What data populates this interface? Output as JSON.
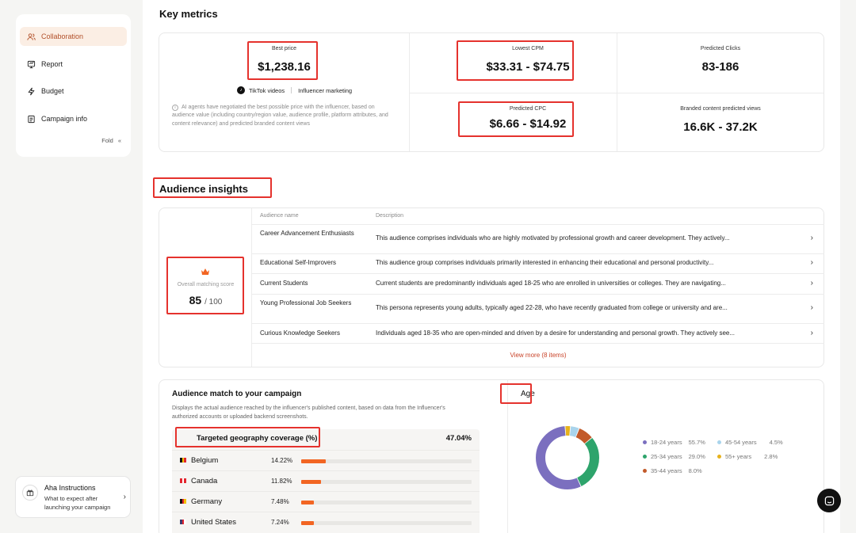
{
  "sidebar": {
    "items": [
      {
        "label": "Collaboration",
        "icon": "users-icon",
        "active": true
      },
      {
        "label": "Report",
        "icon": "report-icon",
        "active": false
      },
      {
        "label": "Budget",
        "icon": "lightning-icon",
        "active": false
      },
      {
        "label": "Campaign info",
        "icon": "document-icon",
        "active": false
      }
    ],
    "fold_label": "Fold",
    "fold_icon": "«"
  },
  "aha": {
    "title": "Aha Instructions",
    "subtitle": "What to expect after launching your campaign"
  },
  "key_metrics": {
    "title": "Key metrics",
    "best_price": {
      "label": "Best price",
      "value": "$1,238.16"
    },
    "platform": "TikTok videos",
    "marketing_type": "Influencer marketing",
    "ai_note": "AI agents have negotiated the best possible price with the influencer, based on audience value (including country/region value, audience profile, platform attributes, and content relevance) and predicted branded content views",
    "lowest_cpm": {
      "label": "Lowest CPM",
      "value": "$33.31 - $74.75"
    },
    "predicted_clicks": {
      "label": "Predicted Clicks",
      "value": "83-186"
    },
    "predicted_cpc": {
      "label": "Predicted CPC",
      "value": "$6.66 - $14.92"
    },
    "branded_views": {
      "label": "Branded content predicted views",
      "value": "16.6K - 37.2K"
    }
  },
  "audience_insights": {
    "title": "Audience insights",
    "score_label": "Overall matching score",
    "score": "85",
    "score_max": "/ 100",
    "columns": {
      "name": "Audience name",
      "description": "Description"
    },
    "rows": [
      {
        "name": "Career Advancement Enthusiasts",
        "description": "This audience comprises individuals who are highly motivated by professional growth and career development. They actively..."
      },
      {
        "name": "Educational Self-Improvers",
        "description": "This audience group comprises individuals primarily interested in enhancing their educational and personal productivity..."
      },
      {
        "name": "Current Students",
        "description": "Current students are predominantly individuals aged 18-25 who are enrolled in universities or colleges. They are navigating..."
      },
      {
        "name": "Young Professional Job Seekers",
        "description": "This persona represents young adults, typically aged 22-28, who have recently graduated from college or university and are..."
      },
      {
        "name": "Curious Knowledge Seekers",
        "description": "Individuals aged 18-35 who are open-minded and driven by a desire for understanding and personal growth. They actively see..."
      }
    ],
    "view_more": "View more (8 items)"
  },
  "audience_match": {
    "title": "Audience match to your campaign",
    "subtitle": "Displays the actual audience reached by the influencer's published content, based on data from the Influencer's authorized accounts or uploaded backend screenshots.",
    "geo_title": "Targeted geography coverage (%)",
    "geo_total": "47.04%",
    "countries": [
      {
        "name": "Belgium",
        "pct": "14.22%",
        "value": 14.22,
        "flag": [
          "#111111",
          "#f2c200",
          "#e3262f"
        ]
      },
      {
        "name": "Canada",
        "pct": "11.82%",
        "value": 11.82,
        "flag": [
          "#e3262f",
          "#ffffff",
          "#e3262f"
        ]
      },
      {
        "name": "Germany",
        "pct": "7.48%",
        "value": 7.48,
        "flag": [
          "#111111",
          "#e3262f",
          "#f2c200"
        ]
      },
      {
        "name": "United States",
        "pct": "7.24%",
        "value": 7.24,
        "flag": [
          "#3c3b6e",
          "#e3262f",
          "#ffffff"
        ]
      }
    ]
  },
  "age": {
    "title": "Age",
    "segments": [
      {
        "label": "18-24 years",
        "pct": "55.7%",
        "value": 55.7,
        "color": "#7b6fbf"
      },
      {
        "label": "25-34 years",
        "pct": "29.0%",
        "value": 29.0,
        "color": "#2ea46c"
      },
      {
        "label": "35-44 years",
        "pct": "8.0%",
        "value": 8.0,
        "color": "#c25a2a"
      },
      {
        "label": "45-54 years",
        "pct": "4.5%",
        "value": 4.5,
        "color": "#a9d4ec"
      },
      {
        "label": "55+ years",
        "pct": "2.8%",
        "value": 2.8,
        "color": "#e7b21c"
      }
    ]
  }
}
